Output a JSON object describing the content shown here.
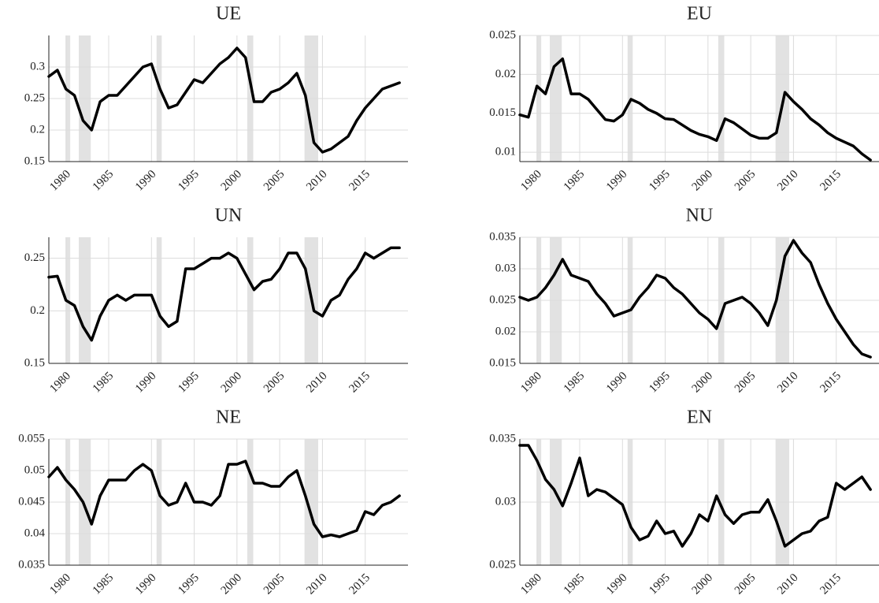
{
  "chart_data": [
    {
      "type": "line",
      "title": "UE",
      "color": "#000000",
      "grid": true,
      "x": [
        1978,
        1979,
        1980,
        1981,
        1982,
        1983,
        1984,
        1985,
        1986,
        1987,
        1988,
        1989,
        1990,
        1991,
        1992,
        1993,
        1994,
        1995,
        1996,
        1997,
        1998,
        1999,
        2000,
        2001,
        2002,
        2003,
        2004,
        2005,
        2006,
        2007,
        2008,
        2009,
        2010,
        2011,
        2012,
        2013,
        2014,
        2015,
        2016,
        2017,
        2018,
        2019
      ],
      "values": [
        0.285,
        0.295,
        0.265,
        0.255,
        0.215,
        0.2,
        0.245,
        0.255,
        0.255,
        0.27,
        0.285,
        0.3,
        0.305,
        0.265,
        0.235,
        0.24,
        0.26,
        0.28,
        0.275,
        0.29,
        0.305,
        0.315,
        0.33,
        0.315,
        0.245,
        0.245,
        0.26,
        0.265,
        0.275,
        0.29,
        0.255,
        0.18,
        0.165,
        0.17,
        0.18,
        0.19,
        0.215,
        0.235,
        0.25,
        0.265,
        0.27,
        0.275
      ],
      "xlim": [
        1978,
        2020
      ],
      "xticks": [
        1980,
        1985,
        1990,
        1995,
        2000,
        2005,
        2010,
        2015
      ],
      "ylim": [
        0.15,
        0.35
      ],
      "yticks": [
        0.15,
        0.2,
        0.25,
        0.3
      ],
      "shaded_spans": [
        [
          1980,
          1980.5
        ],
        [
          1981.5,
          1982.9
        ],
        [
          1990.6,
          1991.2
        ],
        [
          2001.2,
          2001.9
        ],
        [
          2007.9,
          2009.5
        ]
      ]
    },
    {
      "type": "line",
      "title": "EU",
      "color": "#000000",
      "grid": true,
      "x": [
        1978,
        1979,
        1980,
        1981,
        1982,
        1983,
        1984,
        1985,
        1986,
        1987,
        1988,
        1989,
        1990,
        1991,
        1992,
        1993,
        1994,
        1995,
        1996,
        1997,
        1998,
        1999,
        2000,
        2001,
        2002,
        2003,
        2004,
        2005,
        2006,
        2007,
        2008,
        2009,
        2010,
        2011,
        2012,
        2013,
        2014,
        2015,
        2016,
        2017,
        2018,
        2019
      ],
      "values": [
        0.0148,
        0.0145,
        0.0185,
        0.0175,
        0.021,
        0.022,
        0.0175,
        0.0175,
        0.0168,
        0.0155,
        0.0142,
        0.014,
        0.0148,
        0.0168,
        0.0163,
        0.0155,
        0.015,
        0.0143,
        0.0142,
        0.0135,
        0.0128,
        0.0123,
        0.012,
        0.0115,
        0.0143,
        0.0138,
        0.013,
        0.0122,
        0.0118,
        0.0118,
        0.0125,
        0.0177,
        0.0165,
        0.0155,
        0.0143,
        0.0135,
        0.0125,
        0.0118,
        0.0113,
        0.0108,
        0.0098,
        0.009
      ],
      "xlim": [
        1978,
        2020
      ],
      "xticks": [
        1980,
        1985,
        1990,
        1995,
        2000,
        2005,
        2010,
        2015
      ],
      "ylim": [
        0.0088,
        0.025
      ],
      "yticks": [
        0.01,
        0.015,
        0.02,
        0.025
      ],
      "shaded_spans": [
        [
          1980,
          1980.5
        ],
        [
          1981.5,
          1982.9
        ],
        [
          1990.6,
          1991.2
        ],
        [
          2001.2,
          2001.9
        ],
        [
          2007.9,
          2009.5
        ]
      ]
    },
    {
      "type": "line",
      "title": "UN",
      "color": "#000000",
      "grid": true,
      "x": [
        1978,
        1979,
        1980,
        1981,
        1982,
        1983,
        1984,
        1985,
        1986,
        1987,
        1988,
        1989,
        1990,
        1991,
        1992,
        1993,
        1994,
        1995,
        1996,
        1997,
        1998,
        1999,
        2000,
        2001,
        2002,
        2003,
        2004,
        2005,
        2006,
        2007,
        2008,
        2009,
        2010,
        2011,
        2012,
        2013,
        2014,
        2015,
        2016,
        2017,
        2018,
        2019
      ],
      "values": [
        0.232,
        0.233,
        0.21,
        0.205,
        0.185,
        0.172,
        0.195,
        0.21,
        0.215,
        0.21,
        0.215,
        0.215,
        0.215,
        0.195,
        0.185,
        0.19,
        0.24,
        0.24,
        0.245,
        0.25,
        0.25,
        0.255,
        0.25,
        0.235,
        0.22,
        0.228,
        0.23,
        0.24,
        0.255,
        0.255,
        0.24,
        0.2,
        0.195,
        0.21,
        0.215,
        0.23,
        0.24,
        0.255,
        0.25,
        0.255,
        0.26,
        0.26
      ],
      "xlim": [
        1978,
        2020
      ],
      "xticks": [
        1980,
        1985,
        1990,
        1995,
        2000,
        2005,
        2010,
        2015
      ],
      "ylim": [
        0.15,
        0.27
      ],
      "yticks": [
        0.15,
        0.2,
        0.25
      ],
      "shaded_spans": [
        [
          1980,
          1980.5
        ],
        [
          1981.5,
          1982.9
        ],
        [
          1990.6,
          1991.2
        ],
        [
          2001.2,
          2001.9
        ],
        [
          2007.9,
          2009.5
        ]
      ]
    },
    {
      "type": "line",
      "title": "NU",
      "color": "#000000",
      "grid": true,
      "x": [
        1978,
        1979,
        1980,
        1981,
        1982,
        1983,
        1984,
        1985,
        1986,
        1987,
        1988,
        1989,
        1990,
        1991,
        1992,
        1993,
        1994,
        1995,
        1996,
        1997,
        1998,
        1999,
        2000,
        2001,
        2002,
        2003,
        2004,
        2005,
        2006,
        2007,
        2008,
        2009,
        2010,
        2011,
        2012,
        2013,
        2014,
        2015,
        2016,
        2017,
        2018,
        2019
      ],
      "values": [
        0.0255,
        0.025,
        0.0255,
        0.027,
        0.029,
        0.0315,
        0.029,
        0.0285,
        0.028,
        0.026,
        0.0245,
        0.0225,
        0.023,
        0.0235,
        0.0255,
        0.027,
        0.029,
        0.0285,
        0.027,
        0.026,
        0.0245,
        0.023,
        0.022,
        0.0205,
        0.0245,
        0.025,
        0.0255,
        0.0245,
        0.023,
        0.021,
        0.025,
        0.032,
        0.0345,
        0.0325,
        0.031,
        0.0275,
        0.0245,
        0.022,
        0.02,
        0.018,
        0.0165,
        0.016
      ],
      "xlim": [
        1978,
        2020
      ],
      "xticks": [
        1980,
        1985,
        1990,
        1995,
        2000,
        2005,
        2010,
        2015
      ],
      "ylim": [
        0.015,
        0.035
      ],
      "yticks": [
        0.015,
        0.02,
        0.025,
        0.03,
        0.035
      ],
      "shaded_spans": [
        [
          1980,
          1980.5
        ],
        [
          1981.5,
          1982.9
        ],
        [
          1990.6,
          1991.2
        ],
        [
          2001.2,
          2001.9
        ],
        [
          2007.9,
          2009.5
        ]
      ]
    },
    {
      "type": "line",
      "title": "NE",
      "color": "#000000",
      "grid": true,
      "x": [
        1978,
        1979,
        1980,
        1981,
        1982,
        1983,
        1984,
        1985,
        1986,
        1987,
        1988,
        1989,
        1990,
        1991,
        1992,
        1993,
        1994,
        1995,
        1996,
        1997,
        1998,
        1999,
        2000,
        2001,
        2002,
        2003,
        2004,
        2005,
        2006,
        2007,
        2008,
        2009,
        2010,
        2011,
        2012,
        2013,
        2014,
        2015,
        2016,
        2017,
        2018,
        2019
      ],
      "values": [
        0.049,
        0.0505,
        0.0485,
        0.047,
        0.045,
        0.0415,
        0.046,
        0.0485,
        0.0485,
        0.0485,
        0.05,
        0.051,
        0.05,
        0.046,
        0.0445,
        0.045,
        0.048,
        0.045,
        0.045,
        0.0445,
        0.046,
        0.051,
        0.051,
        0.0515,
        0.048,
        0.048,
        0.0475,
        0.0475,
        0.049,
        0.05,
        0.046,
        0.0415,
        0.0395,
        0.0398,
        0.0395,
        0.04,
        0.0405,
        0.0435,
        0.043,
        0.0445,
        0.045,
        0.046
      ],
      "xlim": [
        1978,
        2020
      ],
      "xticks": [
        1980,
        1985,
        1990,
        1995,
        2000,
        2005,
        2010,
        2015
      ],
      "ylim": [
        0.035,
        0.055
      ],
      "yticks": [
        0.035,
        0.04,
        0.045,
        0.05,
        0.055
      ],
      "shaded_spans": [
        [
          1980,
          1980.5
        ],
        [
          1981.5,
          1982.9
        ],
        [
          1990.6,
          1991.2
        ],
        [
          2001.2,
          2001.9
        ],
        [
          2007.9,
          2009.5
        ]
      ]
    },
    {
      "type": "line",
      "title": "EN",
      "color": "#000000",
      "grid": true,
      "x": [
        1978,
        1979,
        1980,
        1981,
        1982,
        1983,
        1984,
        1985,
        1986,
        1987,
        1988,
        1989,
        1990,
        1991,
        1992,
        1993,
        1994,
        1995,
        1996,
        1997,
        1998,
        1999,
        2000,
        2001,
        2002,
        2003,
        2004,
        2005,
        2006,
        2007,
        2008,
        2009,
        2010,
        2011,
        2012,
        2013,
        2014,
        2015,
        2016,
        2017,
        2018,
        2019
      ],
      "values": [
        0.0345,
        0.0345,
        0.0333,
        0.0318,
        0.031,
        0.0297,
        0.0315,
        0.0335,
        0.0305,
        0.031,
        0.0308,
        0.0303,
        0.0298,
        0.028,
        0.027,
        0.0273,
        0.0285,
        0.0275,
        0.0277,
        0.0265,
        0.0275,
        0.029,
        0.0285,
        0.0305,
        0.029,
        0.0283,
        0.029,
        0.0292,
        0.0292,
        0.0302,
        0.0285,
        0.0265,
        0.027,
        0.0275,
        0.0277,
        0.0285,
        0.0288,
        0.0315,
        0.031,
        0.0315,
        0.032,
        0.031
      ],
      "xlim": [
        1978,
        2020
      ],
      "xticks": [
        1980,
        1985,
        1990,
        1995,
        2000,
        2005,
        2010,
        2015
      ],
      "ylim": [
        0.025,
        0.035
      ],
      "yticks": [
        0.025,
        0.03,
        0.035
      ],
      "shaded_spans": [
        [
          1980,
          1980.5
        ],
        [
          1981.5,
          1982.9
        ],
        [
          1990.6,
          1991.2
        ],
        [
          2001.2,
          2001.9
        ],
        [
          2007.9,
          2009.5
        ]
      ]
    }
  ]
}
